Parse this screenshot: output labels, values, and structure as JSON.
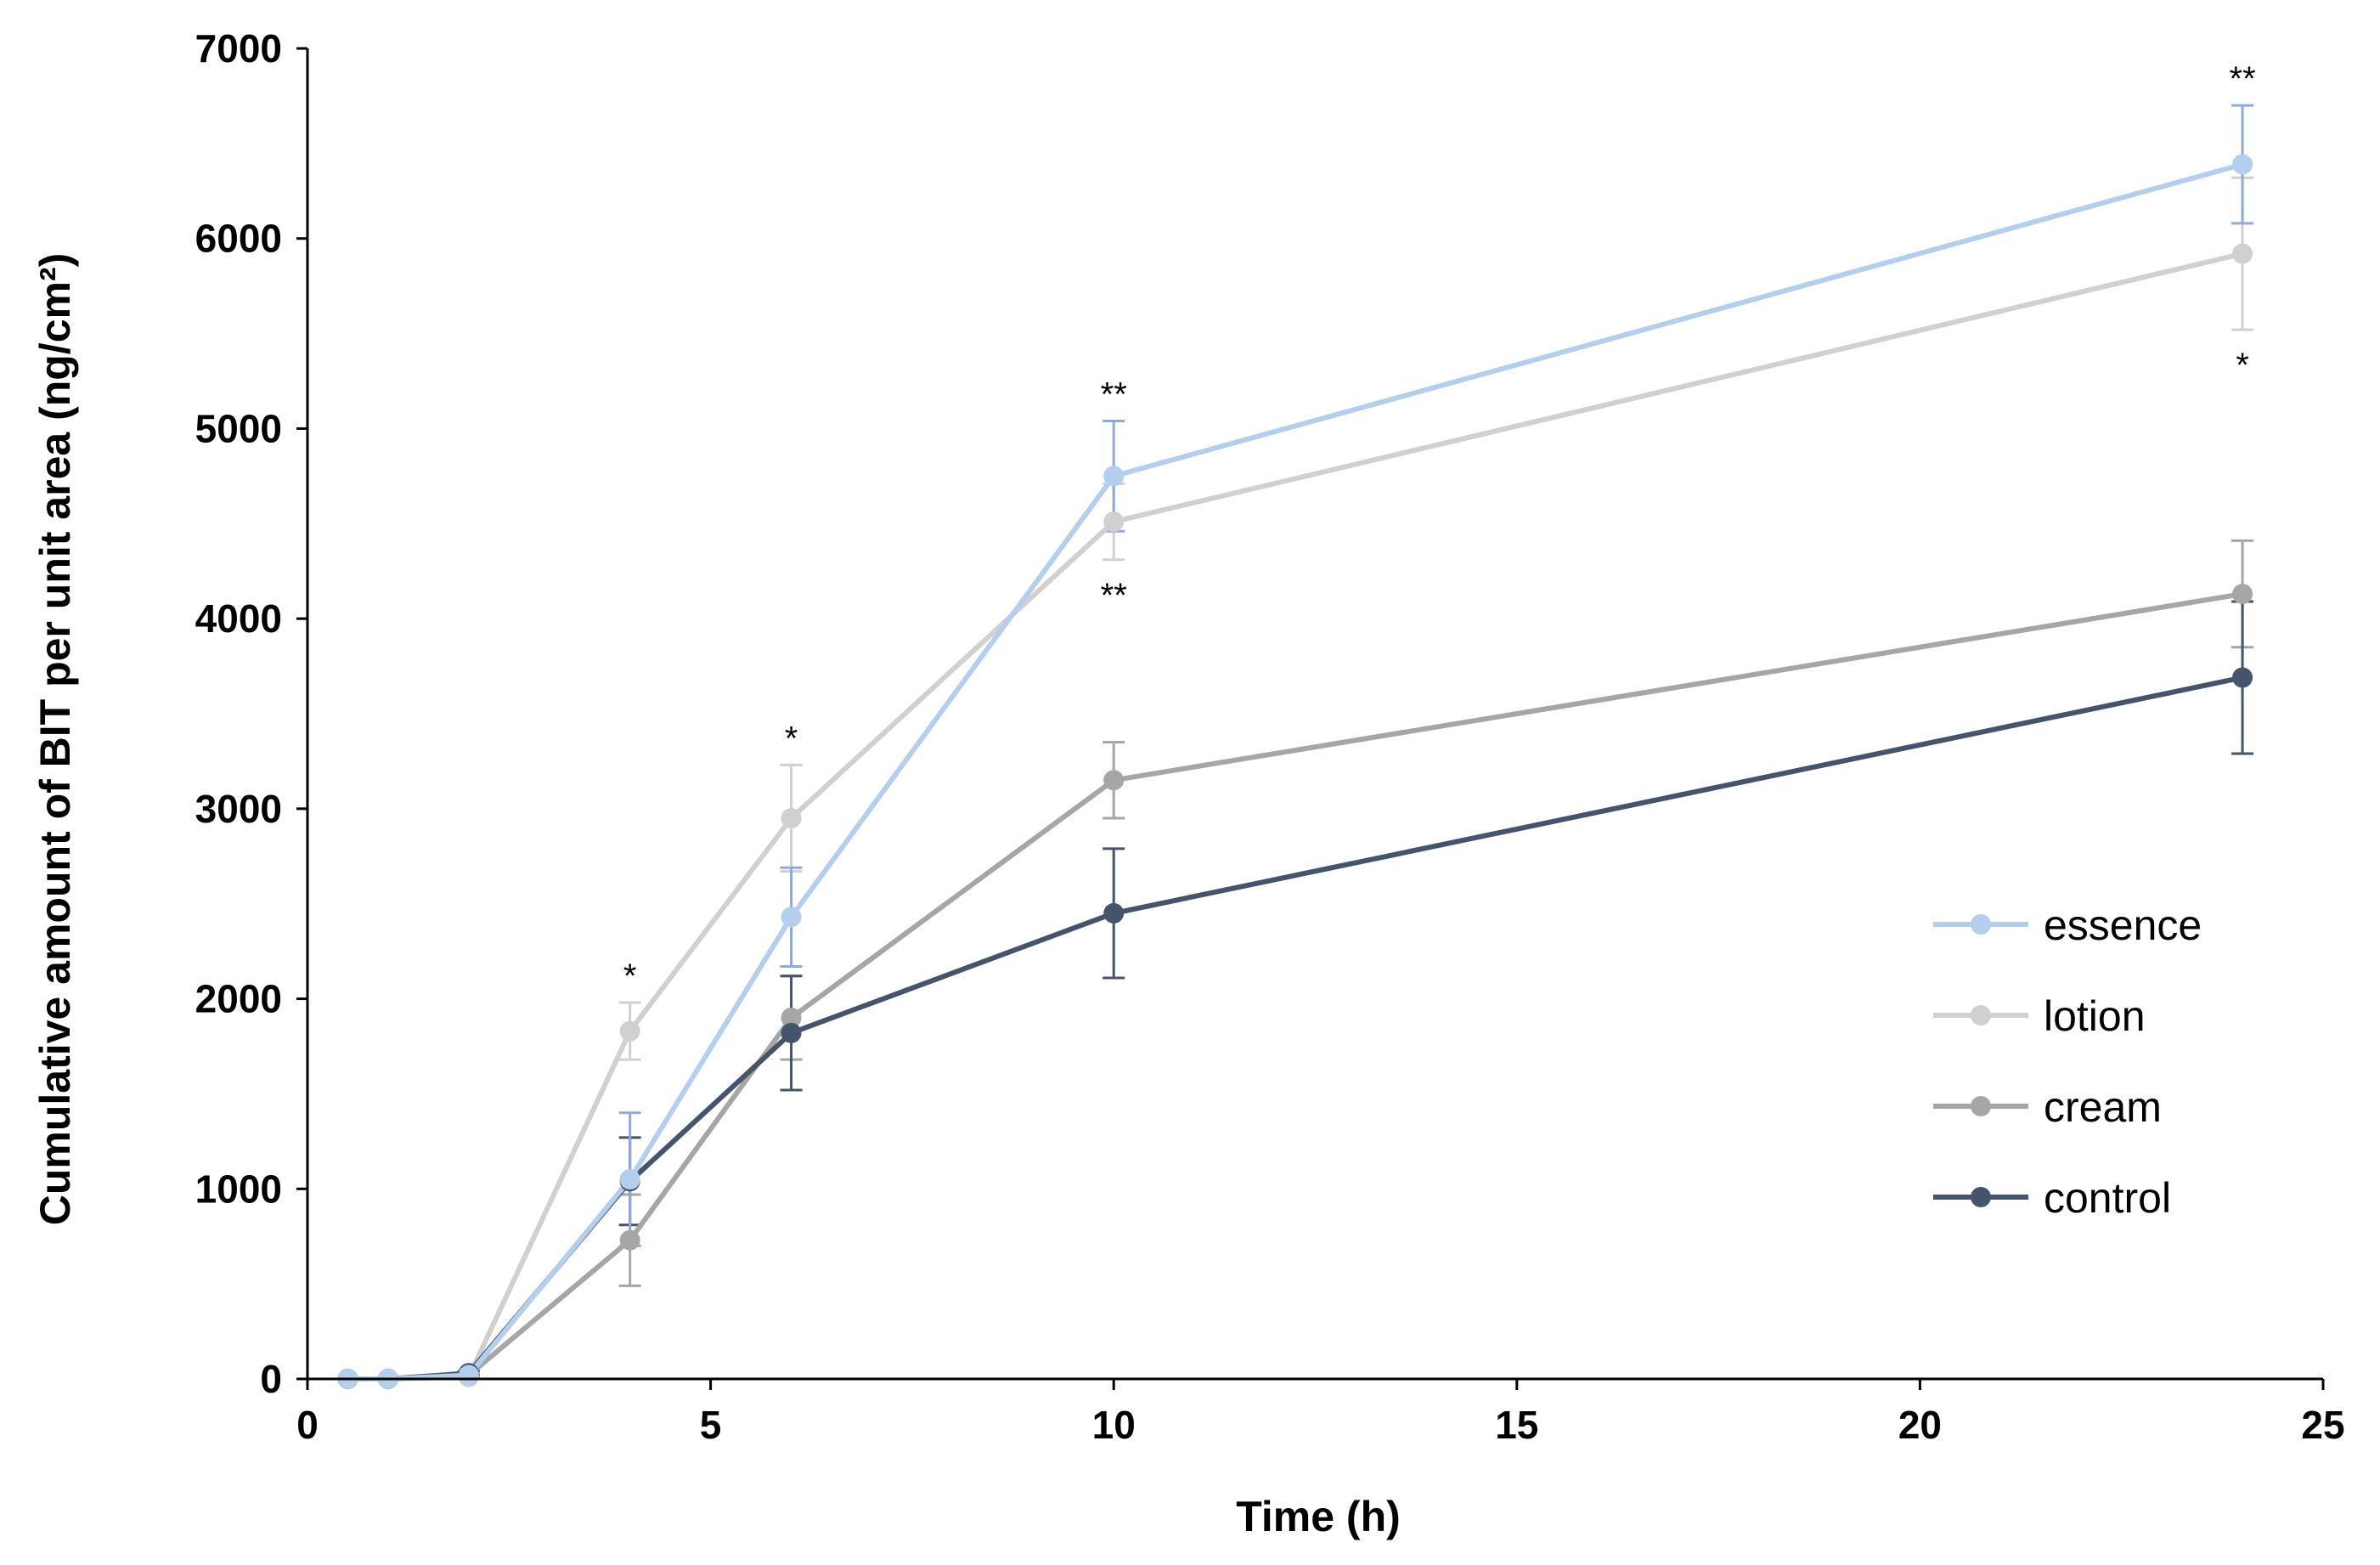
{
  "chart_data": {
    "type": "line",
    "title": "",
    "xlabel": "Time (h)",
    "ylabel": "Cumulative amount of BIT per unit area (ng/cm²)",
    "xlim": [
      0,
      25
    ],
    "ylim": [
      0,
      7000
    ],
    "xticks": [
      0,
      5,
      10,
      15,
      20,
      25
    ],
    "yticks": [
      0,
      1000,
      2000,
      3000,
      4000,
      5000,
      6000,
      7000
    ],
    "grid": false,
    "legend_position": "center-right",
    "x": [
      0.5,
      1,
      2,
      4,
      6,
      10,
      24
    ],
    "series": [
      {
        "name": "lotion",
        "color": "#d0d0d0",
        "values": [
          0,
          0,
          10,
          1830,
          2950,
          4510,
          5920
        ],
        "errors": [
          0,
          0,
          10,
          150,
          280,
          200,
          400
        ]
      },
      {
        "name": "cream",
        "color": "#a6a6a6",
        "values": [
          0,
          0,
          20,
          730,
          1900,
          3150,
          4130
        ],
        "errors": [
          0,
          0,
          10,
          240,
          220,
          200,
          280
        ]
      },
      {
        "name": "control",
        "color": "#44546a",
        "values": [
          0,
          0,
          30,
          1040,
          1820,
          2450,
          3690
        ],
        "errors": [
          0,
          0,
          10,
          230,
          300,
          340,
          400
        ]
      },
      {
        "name": "essence",
        "color": "#b4cfee",
        "error_color": "#8faadc",
        "values": [
          0,
          0,
          20,
          1050,
          2430,
          4750,
          6390
        ],
        "errors": [
          0,
          0,
          10,
          350,
          260,
          290,
          310
        ]
      }
    ],
    "legend_order": [
      "essence",
      "lotion",
      "cream",
      "control"
    ],
    "annotations": [
      {
        "text": "*",
        "x": 4,
        "series": "lotion",
        "position": "above"
      },
      {
        "text": "*",
        "x": 6,
        "series": "lotion",
        "position": "above"
      },
      {
        "text": "**",
        "x": 10,
        "series": "essence",
        "position": "above"
      },
      {
        "text": "**",
        "x": 10,
        "series": "lotion",
        "position": "below"
      },
      {
        "text": "**",
        "x": 24,
        "series": "essence",
        "position": "above"
      },
      {
        "text": "*",
        "x": 24,
        "series": "lotion",
        "position": "below"
      }
    ]
  }
}
